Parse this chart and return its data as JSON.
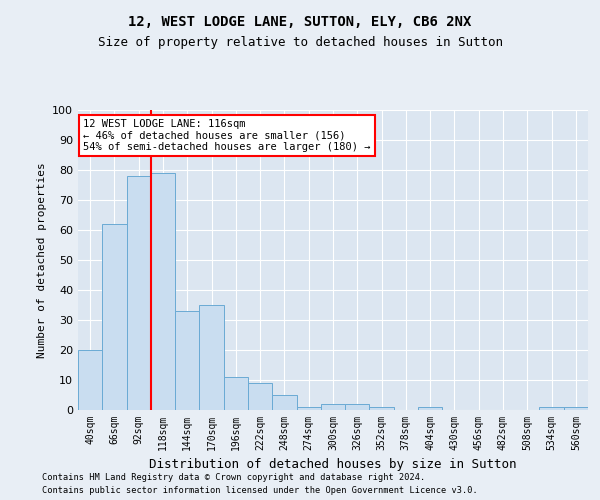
{
  "title": "12, WEST LODGE LANE, SUTTON, ELY, CB6 2NX",
  "subtitle": "Size of property relative to detached houses in Sutton",
  "xlabel": "Distribution of detached houses by size in Sutton",
  "ylabel": "Number of detached properties",
  "categories": [
    "40sqm",
    "66sqm",
    "92sqm",
    "118sqm",
    "144sqm",
    "170sqm",
    "196sqm",
    "222sqm",
    "248sqm",
    "274sqm",
    "300sqm",
    "326sqm",
    "352sqm",
    "378sqm",
    "404sqm",
    "430sqm",
    "456sqm",
    "482sqm",
    "508sqm",
    "534sqm",
    "560sqm"
  ],
  "values": [
    20,
    62,
    78,
    79,
    33,
    35,
    11,
    9,
    5,
    1,
    2,
    2,
    1,
    0,
    1,
    0,
    0,
    0,
    0,
    1,
    1
  ],
  "bar_color": "#c9ddf0",
  "bar_edge_color": "#6aaad4",
  "bar_edge_width": 0.7,
  "redline_x": 2.5,
  "annotation_line1": "12 WEST LODGE LANE: 116sqm",
  "annotation_line2": "← 46% of detached houses are smaller (156)",
  "annotation_line3": "54% of semi-detached houses are larger (180) →",
  "ylim": [
    0,
    100
  ],
  "yticks": [
    0,
    10,
    20,
    30,
    40,
    50,
    60,
    70,
    80,
    90,
    100
  ],
  "footer1": "Contains HM Land Registry data © Crown copyright and database right 2024.",
  "footer2": "Contains public sector information licensed under the Open Government Licence v3.0.",
  "bg_color": "#e8eef5",
  "plot_bg_color": "#dce6f1",
  "grid_color": "white",
  "title_fontsize": 10,
  "subtitle_fontsize": 9,
  "ylabel_fontsize": 8,
  "xlabel_fontsize": 9
}
